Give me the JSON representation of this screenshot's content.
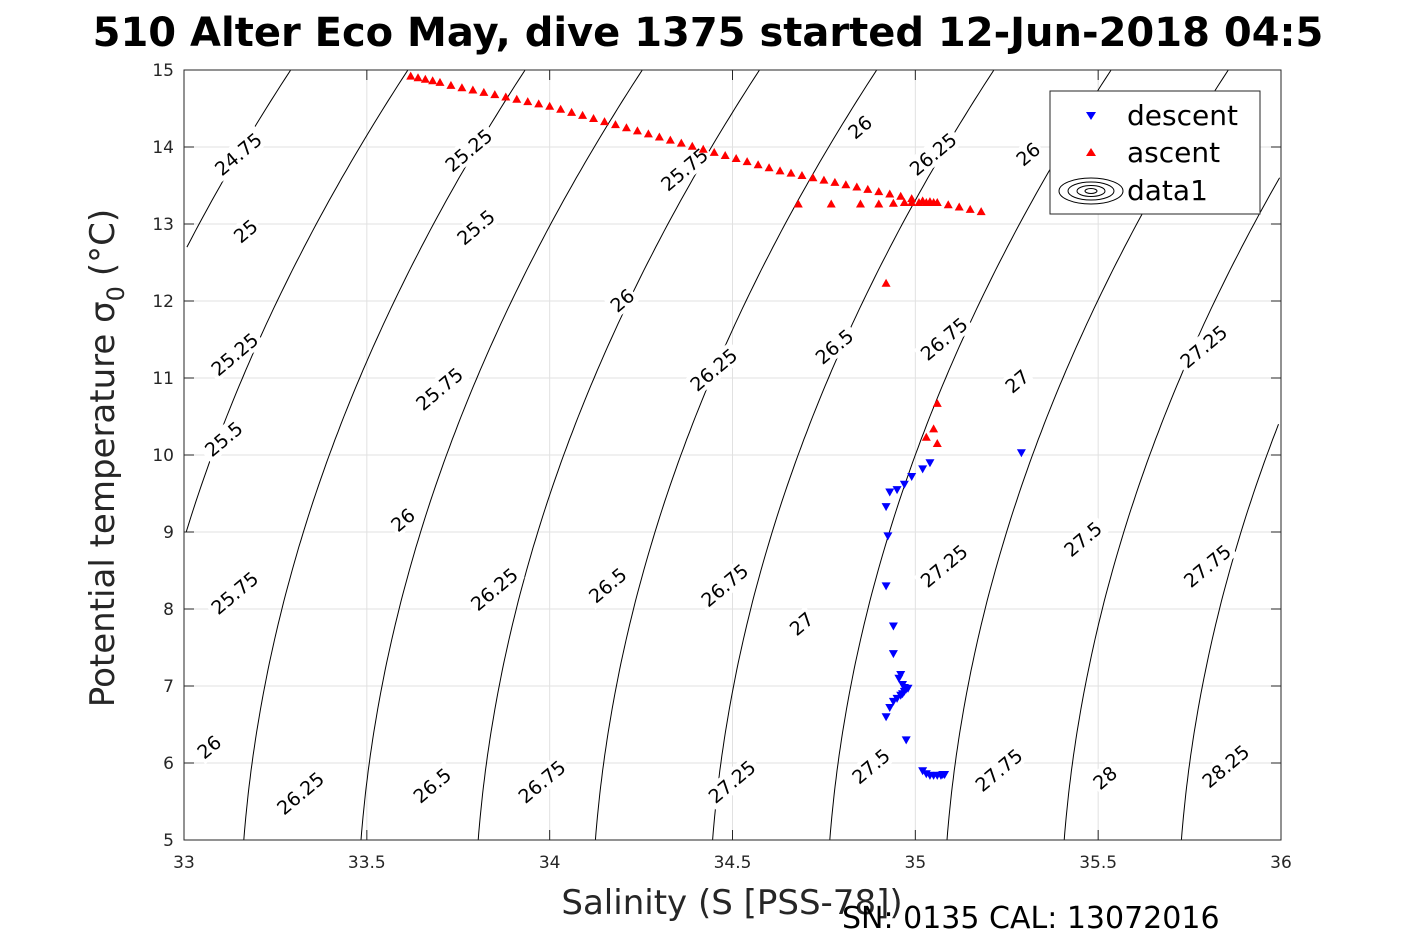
{
  "title": "510 Alter Eco May, dive 1375 started 12-Jun-2018 04:5",
  "footer": "SN: 0135  CAL: 13072016",
  "chart_data": {
    "type": "scatter",
    "xlabel": "Salinity (S [PSS-78])",
    "ylabel_main": "Potential temperature σ",
    "ylabel_sub": "0",
    "ylabel_unit": "(°C)",
    "xlim": [
      33,
      36
    ],
    "ylim": [
      5,
      15
    ],
    "xticks": [
      "33",
      "33.5",
      "34",
      "34.5",
      "35",
      "35.5",
      "36"
    ],
    "yticks": [
      "5",
      "6",
      "7",
      "8",
      "9",
      "10",
      "11",
      "12",
      "13",
      "14",
      "15"
    ],
    "grid": true,
    "legend_position": "top-right",
    "legend": [
      "descent",
      "ascent",
      "data1"
    ],
    "contour_labels": [
      {
        "text": "24.75",
        "s": 33.15,
        "t": 13.9
      },
      {
        "text": "25",
        "s": 33.17,
        "t": 12.9
      },
      {
        "text": "25.25",
        "s": 33.14,
        "t": 11.3
      },
      {
        "text": "25.5",
        "s": 33.11,
        "t": 10.2
      },
      {
        "text": "25.75",
        "s": 33.14,
        "t": 8.2
      },
      {
        "text": "26",
        "s": 33.07,
        "t": 6.2
      },
      {
        "text": "26.25",
        "s": 33.32,
        "t": 5.6
      },
      {
        "text": "25.25",
        "s": 33.78,
        "t": 13.95
      },
      {
        "text": "25.5",
        "s": 33.8,
        "t": 12.95
      },
      {
        "text": "25.75",
        "s": 33.7,
        "t": 10.85
      },
      {
        "text": "26",
        "s": 33.6,
        "t": 9.15
      },
      {
        "text": "26.25",
        "s": 33.85,
        "t": 8.25
      },
      {
        "text": "26.5",
        "s": 33.68,
        "t": 5.7
      },
      {
        "text": "26.75",
        "s": 33.98,
        "t": 5.75
      },
      {
        "text": "25.75",
        "s": 34.37,
        "t": 13.7
      },
      {
        "text": "26",
        "s": 34.2,
        "t": 12.0
      },
      {
        "text": "26.25",
        "s": 34.45,
        "t": 11.1
      },
      {
        "text": "26.5",
        "s": 34.16,
        "t": 8.3
      },
      {
        "text": "26.75",
        "s": 34.48,
        "t": 8.3
      },
      {
        "text": "27",
        "s": 34.69,
        "t": 7.8
      },
      {
        "text": "27.25",
        "s": 34.5,
        "t": 5.75
      },
      {
        "text": "27.5",
        "s": 34.88,
        "t": 5.95
      },
      {
        "text": "26",
        "s": 34.85,
        "t": 14.25
      },
      {
        "text": "26.25",
        "s": 35.05,
        "t": 13.9
      },
      {
        "text": "26.5",
        "s": 34.78,
        "t": 11.4
      },
      {
        "text": "26.75",
        "s": 35.08,
        "t": 11.5
      },
      {
        "text": "27",
        "s": 35.28,
        "t": 10.95
      },
      {
        "text": "27.25",
        "s": 35.08,
        "t": 8.55
      },
      {
        "text": "27.5",
        "s": 35.46,
        "t": 8.9
      },
      {
        "text": "27.75",
        "s": 35.23,
        "t": 5.9
      },
      {
        "text": "28",
        "s": 35.52,
        "t": 5.8
      },
      {
        "text": "27.25",
        "s": 35.79,
        "t": 11.4
      },
      {
        "text": "27.75",
        "s": 35.8,
        "t": 8.55
      },
      {
        "text": "28.25",
        "s": 35.85,
        "t": 5.95
      },
      {
        "text": "26",
        "s": 35.31,
        "t": 13.9
      }
    ],
    "series": [
      {
        "name": "descent",
        "color": "#0000ff",
        "marker": "triangle-down",
        "points": [
          [
            35.29,
            10.03
          ],
          [
            35.04,
            9.9
          ],
          [
            35.02,
            9.82
          ],
          [
            34.99,
            9.72
          ],
          [
            34.97,
            9.62
          ],
          [
            34.95,
            9.55
          ],
          [
            34.93,
            9.52
          ],
          [
            34.92,
            9.33
          ],
          [
            34.925,
            8.95
          ],
          [
            34.92,
            8.3
          ],
          [
            34.94,
            7.78
          ],
          [
            34.94,
            7.42
          ],
          [
            34.96,
            7.15
          ],
          [
            34.955,
            7.1
          ],
          [
            34.965,
            7.02
          ],
          [
            34.97,
            6.98
          ],
          [
            34.975,
            6.96
          ],
          [
            34.98,
            6.97
          ],
          [
            34.97,
            6.93
          ],
          [
            34.965,
            6.9
          ],
          [
            34.96,
            6.88
          ],
          [
            34.95,
            6.84
          ],
          [
            34.94,
            6.8
          ],
          [
            34.93,
            6.72
          ],
          [
            34.92,
            6.6
          ],
          [
            34.975,
            6.3
          ],
          [
            35.02,
            5.9
          ],
          [
            35.03,
            5.86
          ],
          [
            35.04,
            5.84
          ],
          [
            35.05,
            5.84
          ],
          [
            35.06,
            5.84
          ],
          [
            35.07,
            5.84
          ],
          [
            35.075,
            5.85
          ],
          [
            35.08,
            5.85
          ]
        ]
      },
      {
        "name": "ascent",
        "color": "#ff0000",
        "marker": "triangle-up",
        "points": [
          [
            33.62,
            14.92
          ],
          [
            33.64,
            14.9
          ],
          [
            33.66,
            14.88
          ],
          [
            33.68,
            14.86
          ],
          [
            33.7,
            14.84
          ],
          [
            33.73,
            14.8
          ],
          [
            33.76,
            14.77
          ],
          [
            33.79,
            14.74
          ],
          [
            33.82,
            14.71
          ],
          [
            33.85,
            14.68
          ],
          [
            33.88,
            14.65
          ],
          [
            33.91,
            14.62
          ],
          [
            33.94,
            14.59
          ],
          [
            33.97,
            14.56
          ],
          [
            34.0,
            14.53
          ],
          [
            34.03,
            14.49
          ],
          [
            34.06,
            14.45
          ],
          [
            34.09,
            14.41
          ],
          [
            34.12,
            14.37
          ],
          [
            34.15,
            14.33
          ],
          [
            34.18,
            14.29
          ],
          [
            34.21,
            14.25
          ],
          [
            34.24,
            14.21
          ],
          [
            34.27,
            14.17
          ],
          [
            34.3,
            14.13
          ],
          [
            34.33,
            14.09
          ],
          [
            34.36,
            14.05
          ],
          [
            34.39,
            14.01
          ],
          [
            34.42,
            13.97
          ],
          [
            34.45,
            13.93
          ],
          [
            34.48,
            13.89
          ],
          [
            34.51,
            13.85
          ],
          [
            34.54,
            13.81
          ],
          [
            34.57,
            13.77
          ],
          [
            34.6,
            13.73
          ],
          [
            34.63,
            13.69
          ],
          [
            34.66,
            13.66
          ],
          [
            34.69,
            13.63
          ],
          [
            34.72,
            13.6
          ],
          [
            34.75,
            13.57
          ],
          [
            34.78,
            13.54
          ],
          [
            34.81,
            13.51
          ],
          [
            34.84,
            13.48
          ],
          [
            34.87,
            13.45
          ],
          [
            34.9,
            13.42
          ],
          [
            34.93,
            13.39
          ],
          [
            34.96,
            13.36
          ],
          [
            34.99,
            13.33
          ],
          [
            35.02,
            13.3
          ],
          [
            35.04,
            13.29
          ],
          [
            35.06,
            13.28
          ],
          [
            35.09,
            13.25
          ],
          [
            35.12,
            13.22
          ],
          [
            35.15,
            13.19
          ],
          [
            35.18,
            13.16
          ],
          [
            34.68,
            13.26
          ],
          [
            34.77,
            13.26
          ],
          [
            34.85,
            13.26
          ],
          [
            34.9,
            13.26
          ],
          [
            34.94,
            13.27
          ],
          [
            34.97,
            13.28
          ],
          [
            34.99,
            13.28
          ],
          [
            35.01,
            13.28
          ],
          [
            35.03,
            13.28
          ],
          [
            35.05,
            13.28
          ],
          [
            34.92,
            12.23
          ],
          [
            35.06,
            10.67
          ],
          [
            35.05,
            10.34
          ],
          [
            35.03,
            10.23
          ],
          [
            35.06,
            10.15
          ]
        ]
      }
    ]
  }
}
